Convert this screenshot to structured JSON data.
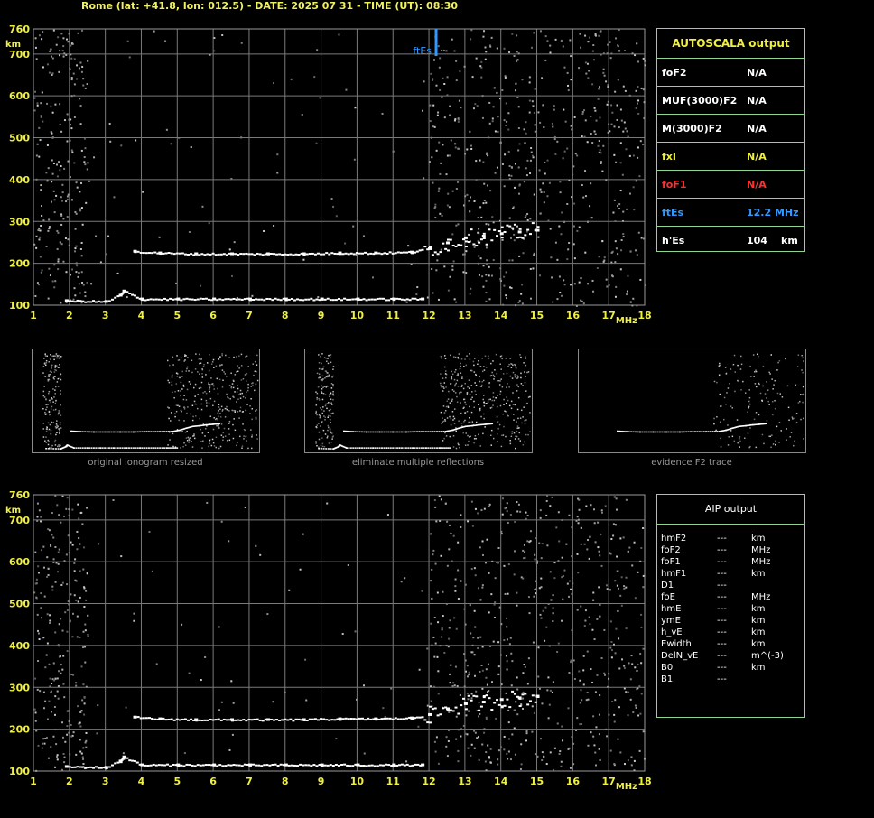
{
  "header": "Rome (lat: +41.8, lon: 012.5) - DATE: 2025 07 31 - TIME (UT): 08:30",
  "colors": {
    "yellow": "#f0f040",
    "grid": "#7a7a7a",
    "panel_border": "#8fd58f",
    "red": "#ff3030",
    "blue": "#3399ff",
    "trace": "#ffffff"
  },
  "autoscala": {
    "title": "AUTOSCALA output",
    "rows": [
      {
        "label": "foF2",
        "value": "N/A",
        "unit": "",
        "color": "#ffffff"
      },
      {
        "label": "MUF(3000)F2",
        "value": "N/A",
        "unit": "",
        "color": "#ffffff"
      },
      {
        "label": "M(3000)F2",
        "value": "N/A",
        "unit": "",
        "color": "#ffffff"
      },
      {
        "label": "fxI",
        "value": "N/A",
        "unit": "",
        "color": "#f0f040"
      },
      {
        "label": "foF1",
        "value": "N/A",
        "unit": "",
        "color": "#ff3030"
      },
      {
        "label": "ftEs",
        "value": "12.2 MHz",
        "unit": "",
        "color": "#3399ff"
      },
      {
        "label": "h'Es",
        "value": "104",
        "unit": "km",
        "color": "#ffffff"
      }
    ]
  },
  "aip": {
    "title": "AIP output",
    "rows": [
      {
        "label": "hmF2",
        "value": "---",
        "unit": "km"
      },
      {
        "label": "foF2",
        "value": "---",
        "unit": "MHz"
      },
      {
        "label": "foF1",
        "value": "---",
        "unit": "MHz"
      },
      {
        "label": "hmF1",
        "value": "---",
        "unit": "km"
      },
      {
        "label": "D1",
        "value": "---",
        "unit": ""
      },
      {
        "label": "foE",
        "value": "---",
        "unit": "MHz"
      },
      {
        "label": "hmE",
        "value": "---",
        "unit": "km"
      },
      {
        "label": "ymE",
        "value": "---",
        "unit": "km"
      },
      {
        "label": "h_vE",
        "value": "---",
        "unit": "km"
      },
      {
        "label": "Ewidth",
        "value": "---",
        "unit": "km"
      },
      {
        "label": "DelN_vE",
        "value": "---",
        "unit": "m^(-3)"
      },
      {
        "label": "B0",
        "value": "---",
        "unit": "km"
      },
      {
        "label": "B1",
        "value": "---",
        "unit": ""
      }
    ]
  },
  "thumbnails": [
    {
      "caption": "original ionogram resized"
    },
    {
      "caption": "eliminate multiple reflections"
    },
    {
      "caption": "evidence F2 trace"
    }
  ],
  "chart_data": [
    {
      "type": "scatter",
      "title": "",
      "xlabel": "MHz",
      "ylabel": "km",
      "xlim": [
        1,
        18
      ],
      "ylim": [
        100,
        760
      ],
      "x_ticks": [
        "1",
        "2",
        "3",
        "4",
        "5",
        "6",
        "7",
        "8",
        "9",
        "10",
        "11",
        "12",
        "13",
        "14",
        "15",
        "16",
        "17",
        "18"
      ],
      "y_ticks": [
        "100",
        "200",
        "300",
        "400",
        "500",
        "600",
        "700",
        "760"
      ],
      "grid": true,
      "annotation": {
        "text": "ftEs",
        "x": 12.2
      },
      "series": [
        {
          "values": [
            [
              1.9,
              112
            ],
            [
              3.0,
              110
            ],
            [
              3.4,
              125
            ],
            [
              3.5,
              135
            ],
            [
              4.0,
              116
            ],
            [
              5.0,
              116
            ],
            [
              6.0,
              116
            ],
            [
              7.0,
              116
            ],
            [
              8.0,
              116
            ],
            [
              9.0,
              116
            ],
            [
              10.0,
              116
            ],
            [
              11.0,
              116
            ],
            [
              11.8,
              116
            ]
          ]
        },
        {
          "values": [
            [
              3.8,
              230
            ],
            [
              4.5,
              226
            ],
            [
              5.5,
              224
            ],
            [
              6.5,
              224
            ],
            [
              7.5,
              224
            ],
            [
              8.5,
              224
            ],
            [
              9.5,
              226
            ],
            [
              10.5,
              226
            ],
            [
              11.5,
              228
            ],
            [
              12.0,
              236
            ],
            [
              12.5,
              250
            ],
            [
              13.0,
              262
            ],
            [
              13.5,
              266
            ],
            [
              14.0,
              272
            ],
            [
              14.5,
              276
            ],
            [
              15.0,
              280
            ]
          ]
        }
      ]
    },
    {
      "type": "scatter",
      "title": "",
      "xlabel": "MHz",
      "ylabel": "km",
      "xlim": [
        1,
        18
      ],
      "ylim": [
        100,
        760
      ],
      "x_ticks": [
        "1",
        "2",
        "3",
        "4",
        "5",
        "6",
        "7",
        "8",
        "9",
        "10",
        "11",
        "12",
        "13",
        "14",
        "15",
        "16",
        "17",
        "18"
      ],
      "y_ticks": [
        "100",
        "200",
        "300",
        "400",
        "500",
        "600",
        "700",
        "760"
      ],
      "grid": true,
      "series": [
        {
          "values": [
            [
              1.9,
              112
            ],
            [
              3.0,
              110
            ],
            [
              3.4,
              125
            ],
            [
              3.5,
              135
            ],
            [
              4.0,
              116
            ],
            [
              5.0,
              116
            ],
            [
              6.0,
              116
            ],
            [
              7.0,
              116
            ],
            [
              8.0,
              116
            ],
            [
              9.0,
              116
            ],
            [
              10.0,
              116
            ],
            [
              11.0,
              116
            ],
            [
              11.8,
              116
            ]
          ]
        },
        {
          "values": [
            [
              3.8,
              230
            ],
            [
              4.5,
              226
            ],
            [
              5.5,
              224
            ],
            [
              6.5,
              224
            ],
            [
              7.5,
              224
            ],
            [
              8.5,
              224
            ],
            [
              9.5,
              226
            ],
            [
              10.5,
              226
            ],
            [
              11.5,
              228
            ],
            [
              12.0,
              236
            ],
            [
              12.5,
              250
            ],
            [
              13.0,
              262
            ],
            [
              13.5,
              266
            ],
            [
              14.0,
              272
            ],
            [
              14.5,
              276
            ],
            [
              15.0,
              280
            ]
          ]
        }
      ]
    }
  ]
}
